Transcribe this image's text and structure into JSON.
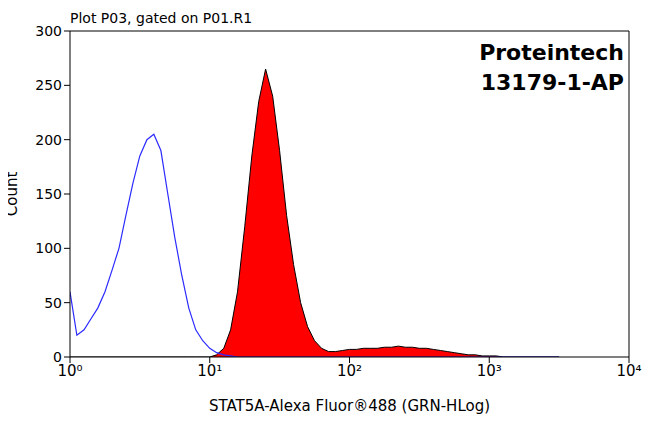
{
  "chart_data": {
    "type": "line",
    "title": "Plot P03, gated on P01.R1",
    "annotations": [
      "Proteintech",
      "13179-1-AP"
    ],
    "x_label": "STAT5A-Alexa Fluor®488 (GRN-HLog)",
    "y_label": "Count",
    "log": "x",
    "grid": false,
    "xlim": [
      1,
      10000
    ],
    "xticks": [
      {
        "value": 1,
        "label": "10⁰"
      },
      {
        "value": 10,
        "label": "10¹"
      },
      {
        "value": 100,
        "label": "10²"
      },
      {
        "value": 1000,
        "label": "10³"
      },
      {
        "value": 10000,
        "label": "10⁴"
      }
    ],
    "ylim": [
      0,
      300
    ],
    "yticks": [
      0,
      50,
      100,
      150,
      200,
      250,
      300
    ],
    "x": [
      1,
      1.12,
      1.26,
      1.41,
      1.58,
      1.78,
      2,
      2.24,
      2.51,
      2.82,
      3.16,
      3.55,
      3.98,
      4.47,
      5.01,
      5.62,
      6.31,
      7.08,
      7.94,
      8.91,
      10,
      11.2,
      12.6,
      14.1,
      15.8,
      17.8,
      20,
      22.4,
      25.1,
      28.2,
      31.6,
      35.5,
      39.8,
      44.7,
      50.1,
      56.2,
      63.1,
      70.8,
      79.4,
      89.1,
      100,
      112,
      126,
      141,
      158,
      178,
      200,
      224,
      251,
      282,
      316,
      355,
      398,
      447,
      501,
      562,
      631,
      708,
      794,
      891,
      1000,
      1122,
      1259,
      1413,
      1585,
      1778,
      1995,
      2239,
      2512,
      2818,
      3162
    ],
    "series": [
      {
        "type": "line",
        "color": "#2b2bff",
        "values": [
          60,
          20,
          25,
          35,
          45,
          60,
          80,
          100,
          130,
          160,
          185,
          200,
          205,
          190,
          150,
          110,
          75,
          45,
          25,
          15,
          8,
          4,
          2,
          1,
          0,
          0,
          0,
          0,
          0,
          0,
          0,
          0,
          0,
          0,
          0,
          0,
          0,
          0,
          0,
          0,
          0,
          0,
          0,
          0,
          0,
          0,
          0,
          0,
          0,
          0,
          0,
          0,
          0,
          0,
          0,
          0,
          0,
          0,
          0,
          0,
          0,
          0,
          0,
          0,
          0,
          0,
          0,
          0,
          0,
          0,
          0
        ]
      },
      {
        "type": "area",
        "color": "#ff0000",
        "values": [
          0,
          0,
          0,
          0,
          0,
          0,
          0,
          0,
          0,
          0,
          0,
          0,
          0,
          0,
          0,
          0,
          0,
          0,
          0,
          0,
          0,
          2,
          8,
          25,
          60,
          120,
          185,
          235,
          265,
          240,
          190,
          130,
          85,
          50,
          28,
          15,
          8,
          5,
          5,
          6,
          7,
          7,
          8,
          8,
          8,
          9,
          9,
          10,
          9,
          9,
          8,
          8,
          7,
          6,
          5,
          4,
          3,
          2,
          2,
          1,
          1,
          1,
          0,
          0,
          0,
          0,
          0,
          0,
          0,
          0,
          0
        ]
      }
    ]
  }
}
